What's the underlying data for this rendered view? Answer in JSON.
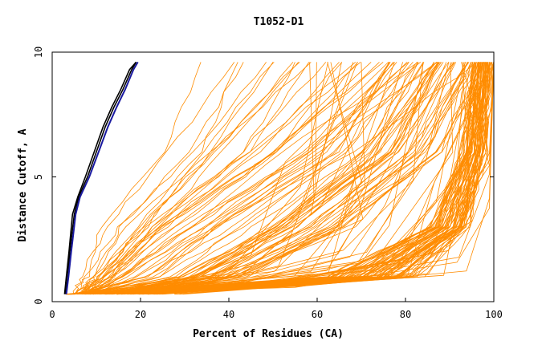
{
  "chart_data": {
    "type": "line",
    "title": "T1052-D1",
    "xlabel": "Percent of Residues (CA)",
    "ylabel": "Distance Cutoff, A",
    "xlim": [
      0,
      100
    ],
    "ylim": [
      0,
      10
    ],
    "xticks": [
      "0",
      "20",
      "40",
      "60",
      "80",
      "100"
    ],
    "yticks": [
      "0",
      "5",
      "10"
    ],
    "grid": false,
    "legend": "none",
    "colors": {
      "models": "#ff8c00",
      "highlight_dark": "#000000",
      "highlight_blue": "#1a1aa0"
    },
    "highlight_series": [
      {
        "x": [
          3,
          3.5,
          4,
          5,
          6,
          8,
          10,
          12,
          14,
          16,
          18,
          19
        ],
        "y": [
          0.3,
          1,
          2,
          3.5,
          4.2,
          5,
          6,
          7,
          7.8,
          8.5,
          9.3,
          9.6
        ]
      },
      {
        "x": [
          2.8,
          3.2,
          3.8,
          4.6,
          5.8,
          7.5,
          9.5,
          11.5,
          13.5,
          15.5,
          17.5,
          19
        ],
        "y": [
          0.3,
          1,
          2,
          3.5,
          4.2,
          5,
          6,
          7,
          7.8,
          8.5,
          9.3,
          9.6
        ]
      },
      {
        "x": [
          3.2,
          3.7,
          4.3,
          5.3,
          6.3,
          8.4,
          10.5,
          12.6,
          14.6,
          16.5,
          18.4,
          19.4
        ],
        "y": [
          0.3,
          1,
          2,
          3.5,
          4.2,
          5,
          6,
          7,
          7.8,
          8.5,
          9.3,
          9.6
        ]
      }
    ],
    "model_families": [
      {
        "name": "",
        "count": 60,
        "x_at_y": {
          "0.3": [
            4,
            30
          ],
          "1": [
            60,
            85
          ],
          "3": [
            85,
            95
          ],
          "6": [
            92,
            99
          ],
          "9.6": [
            95,
            100
          ]
        }
      },
      {
        "name": "",
        "count": 40,
        "x_at_y": {
          "0.3": [
            4,
            20
          ],
          "1": [
            20,
            45
          ],
          "3": [
            35,
            70
          ],
          "6": [
            60,
            90
          ],
          "9.6": [
            75,
            100
          ]
        }
      },
      {
        "name": "",
        "count": 30,
        "x_at_y": {
          "0.3": [
            4,
            10
          ],
          "1": [
            6,
            20
          ],
          "3": [
            10,
            40
          ],
          "6": [
            20,
            70
          ],
          "9.6": [
            30,
            100
          ]
        }
      }
    ]
  }
}
